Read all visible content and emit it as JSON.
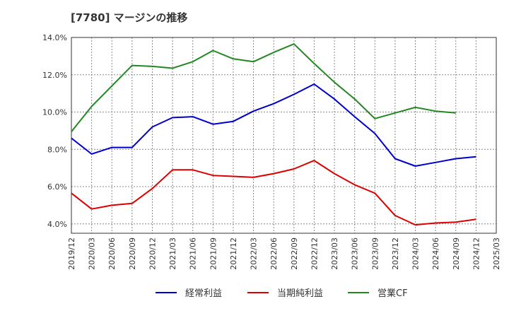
{
  "chart_data": {
    "type": "line",
    "title": "[7780]  マージンの推移",
    "categories": [
      "2019/12",
      "2020/03",
      "2020/06",
      "2020/09",
      "2020/12",
      "2021/03",
      "2021/06",
      "2021/09",
      "2021/12",
      "2022/03",
      "2022/06",
      "2022/09",
      "2022/12",
      "2023/03",
      "2023/06",
      "2023/09",
      "2023/12",
      "2024/03",
      "2024/06",
      "2024/09",
      "2024/12",
      "2025/03"
    ],
    "ylim": [
      3.5,
      14.0
    ],
    "yticks": [
      4.0,
      6.0,
      8.0,
      10.0,
      12.0,
      14.0
    ],
    "ytick_labels": [
      "4.0%",
      "6.0%",
      "8.0%",
      "10.0%",
      "12.0%",
      "14.0%"
    ],
    "grid": true,
    "legend_position": "bottom",
    "series": [
      {
        "name": "経常利益",
        "color": "#0000cc",
        "values": [
          8.6,
          7.75,
          8.1,
          8.1,
          9.2,
          9.7,
          9.75,
          9.35,
          9.5,
          10.05,
          10.45,
          10.95,
          11.5,
          10.7,
          9.75,
          8.85,
          7.5,
          7.1,
          7.3,
          7.5,
          7.6,
          null
        ]
      },
      {
        "name": "当期純利益",
        "color": "#dd0000",
        "values": [
          5.65,
          4.8,
          5.0,
          5.1,
          5.9,
          6.9,
          6.9,
          6.6,
          6.55,
          6.5,
          6.7,
          6.95,
          7.4,
          6.7,
          6.1,
          5.65,
          4.45,
          3.95,
          4.05,
          4.1,
          4.25,
          null
        ]
      },
      {
        "name": "営業CF",
        "color": "#228822",
        "values": [
          8.95,
          10.3,
          11.4,
          12.5,
          12.45,
          12.35,
          12.7,
          13.3,
          12.85,
          12.7,
          13.2,
          13.65,
          12.6,
          11.6,
          10.7,
          9.65,
          9.95,
          10.25,
          10.05,
          9.95,
          null,
          null
        ]
      }
    ]
  }
}
